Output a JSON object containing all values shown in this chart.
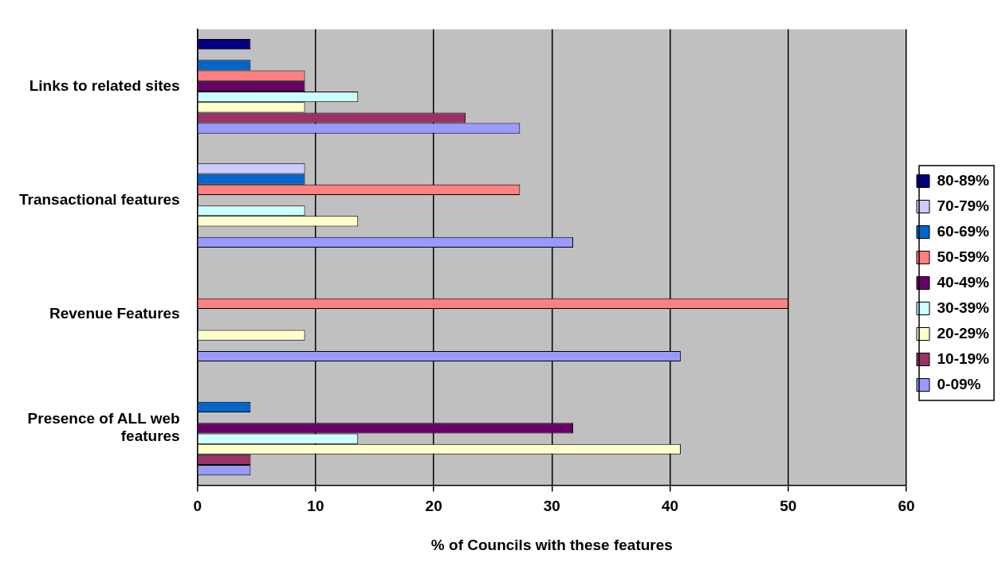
{
  "chart_data": {
    "type": "bar",
    "orientation": "horizontal",
    "xlabel": "% of Councils with these features",
    "categories": [
      "Links to related sites",
      "Transactional features",
      "Revenue Features",
      "Presence of ALL web features"
    ],
    "series": [
      {
        "name": "80-89%",
        "color": "#000080",
        "values": [
          4.5,
          null,
          null,
          null
        ]
      },
      {
        "name": "70-79%",
        "color": "#ccccff",
        "values": [
          null,
          9.1,
          null,
          null
        ]
      },
      {
        "name": "60-69%",
        "color": "#0066cc",
        "values": [
          4.5,
          9.1,
          null,
          4.5
        ]
      },
      {
        "name": "50-59%",
        "color": "#ff8080",
        "values": [
          9.1,
          27.3,
          50,
          null
        ]
      },
      {
        "name": "40-49%",
        "color": "#660066",
        "values": [
          9.1,
          null,
          null,
          31.8
        ]
      },
      {
        "name": "30-39%",
        "color": "#ccffff",
        "values": [
          13.6,
          9.1,
          null,
          13.6
        ]
      },
      {
        "name": "20-29%",
        "color": "#ffffcc",
        "values": [
          9.1,
          13.6,
          9.1,
          40.9
        ]
      },
      {
        "name": "10-19%",
        "color": "#993366",
        "values": [
          22.7,
          null,
          null,
          4.5
        ]
      },
      {
        "name": "0-09%",
        "color": "#9999ff",
        "values": [
          27.3,
          31.8,
          40.9,
          4.5
        ]
      }
    ],
    "xlim": [
      0,
      60
    ],
    "xticks": [
      0,
      10,
      20,
      30,
      40,
      50,
      60
    ],
    "grid": "x",
    "legend": "right"
  }
}
